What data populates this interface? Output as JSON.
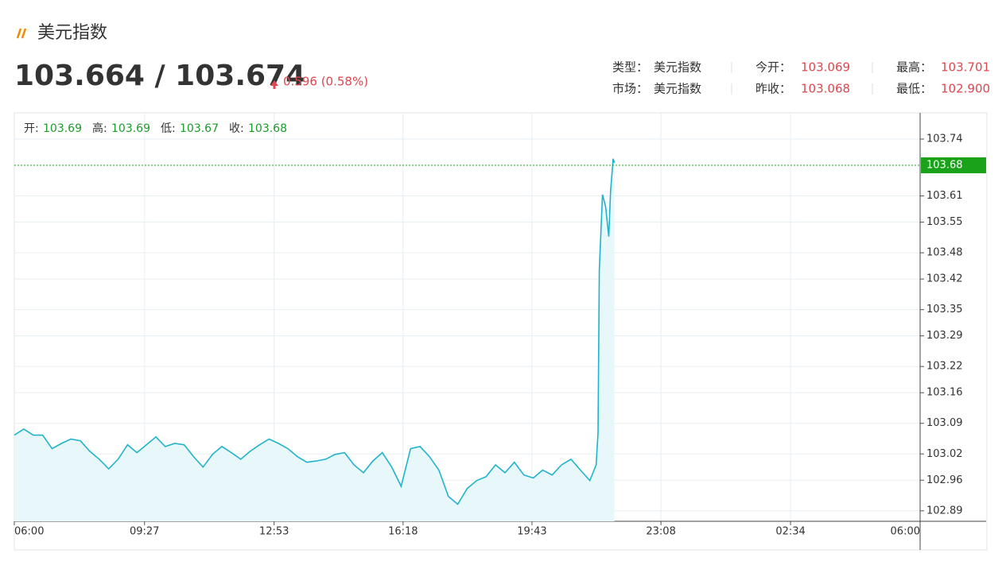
{
  "header": {
    "title": "美元指数",
    "price": "103.664 / 103.674",
    "change": "0.596 (0.58%)"
  },
  "info": [
    [
      {
        "label": "类型：",
        "value": "美元指数"
      },
      {
        "label": "今开：",
        "value": "103.069"
      },
      {
        "label": "最高：",
        "value": "103.701"
      }
    ],
    [
      {
        "label": "市场：",
        "value": "美元指数"
      },
      {
        "label": "昨收：",
        "value": "103.068"
      },
      {
        "label": "最低：",
        "value": "102.900"
      }
    ]
  ],
  "chart_data": {
    "type": "area",
    "ohlc": [
      {
        "label": "开:",
        "value": 103.69
      },
      {
        "label": "高:",
        "value": 103.69
      },
      {
        "label": "低:",
        "value": 103.67
      },
      {
        "label": "收:",
        "value": 103.68
      }
    ],
    "x": [
      0,
      15,
      30,
      45,
      60,
      75,
      90,
      105,
      120,
      135,
      150,
      165,
      180,
      195,
      210,
      225,
      240,
      255,
      270,
      285,
      300,
      315,
      330,
      345,
      360,
      375,
      390,
      405,
      420,
      435,
      450,
      465,
      480,
      495,
      510,
      525,
      540,
      555,
      570,
      585,
      600,
      615,
      630,
      645,
      660,
      675,
      690,
      705,
      720,
      735,
      750,
      765,
      780,
      795,
      810,
      825,
      840,
      855,
      870,
      885,
      900,
      915,
      925,
      928,
      930,
      935,
      940,
      945,
      948,
      951,
      952,
      954
    ],
    "series": [
      {
        "color": "#1fb3cc",
        "fill": "#e8f8fa",
        "values": [
          103.063,
          103.077,
          103.063,
          103.063,
          103.032,
          103.044,
          103.054,
          103.05,
          103.026,
          103.008,
          102.986,
          103.008,
          103.041,
          103.023,
          103.041,
          103.059,
          103.037,
          103.044,
          103.041,
          103.014,
          102.99,
          103.019,
          103.037,
          103.023,
          103.008,
          103.026,
          103.041,
          103.054,
          103.044,
          103.032,
          103.014,
          103.001,
          103.004,
          103.008,
          103.019,
          103.023,
          102.995,
          102.977,
          103.004,
          103.023,
          102.99,
          102.946,
          103.032,
          103.037,
          103.014,
          102.983,
          102.923,
          102.905,
          102.941,
          102.959,
          102.968,
          102.995,
          102.977,
          103.001,
          102.972,
          102.965,
          102.983,
          102.972,
          102.995,
          103.008,
          102.983,
          102.959,
          102.995,
          103.068,
          103.44,
          103.613,
          103.586,
          103.517,
          103.622,
          103.676,
          103.695,
          103.686
        ]
      }
    ],
    "xlim": [
      0,
      1440
    ],
    "xticks": [
      {
        "value": 0,
        "label": "06:00"
      },
      {
        "value": 207,
        "label": "09:27"
      },
      {
        "value": 413,
        "label": "12:53"
      },
      {
        "value": 618,
        "label": "16:18"
      },
      {
        "value": 823,
        "label": "19:43"
      },
      {
        "value": 1028,
        "label": "23:08"
      },
      {
        "value": 1234,
        "label": "02:34"
      },
      {
        "value": 1440,
        "label": "06:00"
      }
    ],
    "ylim": [
      102.866,
      103.8
    ],
    "yticks": [
      103.74,
      103.61,
      103.55,
      103.48,
      103.42,
      103.35,
      103.29,
      103.22,
      103.16,
      103.09,
      103.02,
      102.96,
      102.89
    ],
    "last_price": 103.68,
    "last_color": "#1aa31a",
    "ohlc_color": "#1a9c2a",
    "grid": true
  }
}
